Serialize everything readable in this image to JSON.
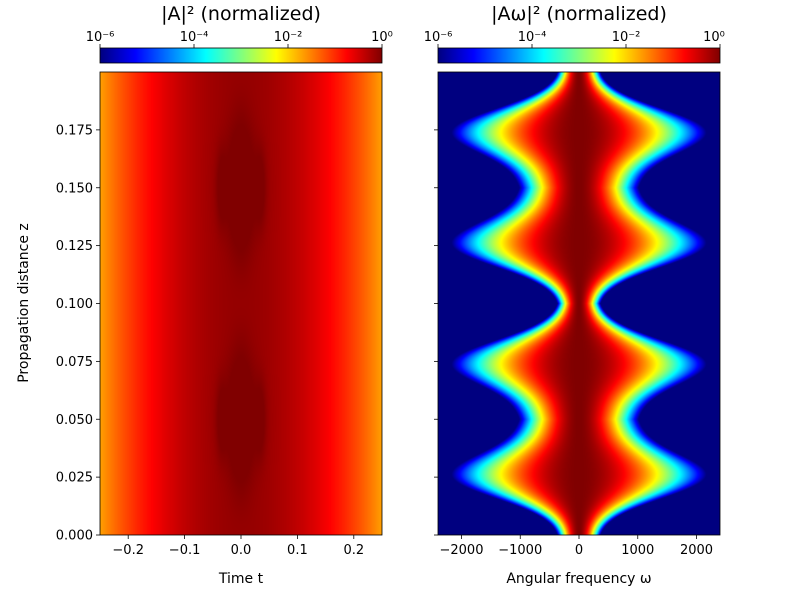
{
  "chart_data": [
    {
      "type": "heatmap",
      "panel": "left",
      "title": "|A|² (normalized)",
      "xlabel": "Time t",
      "ylabel": "Propagation distance z",
      "xlim": [
        -0.25,
        0.25
      ],
      "ylim": [
        0.0,
        0.2
      ],
      "x_ticks": [
        -0.2,
        -0.1,
        0.0,
        0.1,
        0.2
      ],
      "x_tick_labels": [
        "−0.2",
        "−0.1",
        "0.0",
        "0.1",
        "0.2"
      ],
      "y_ticks": [
        0.0,
        0.025,
        0.05,
        0.075,
        0.1,
        0.125,
        0.15,
        0.175
      ],
      "y_tick_labels": [
        "0.000",
        "0.025",
        "0.050",
        "0.075",
        "0.100",
        "0.125",
        "0.150",
        "0.175"
      ],
      "colorbar": {
        "scale": "log",
        "range": [
          1e-06,
          1
        ],
        "ticks": [
          1e-06,
          0.0001,
          0.01,
          1
        ],
        "tick_labels": [
          "10⁻⁶",
          "10⁻⁴",
          "10⁻²",
          "10⁰"
        ]
      },
      "pulse_width_rms": 0.093,
      "period_z": 0.1,
      "colormap": "jet"
    },
    {
      "type": "heatmap",
      "panel": "right",
      "title": "|Aω|² (normalized)",
      "xlabel": "Angular frequency ω",
      "ylabel": "",
      "xlim": [
        -2400,
        2400
      ],
      "ylim": [
        0.0,
        0.2
      ],
      "x_ticks": [
        -2000,
        -1000,
        0,
        1000,
        2000
      ],
      "x_tick_labels": [
        "−2000",
        "−1000",
        "0",
        "1000",
        "2000"
      ],
      "y_ticks": [
        0.0,
        0.025,
        0.05,
        0.075,
        0.1,
        0.125,
        0.15,
        0.175
      ],
      "colorbar": {
        "scale": "log",
        "range": [
          1e-06,
          1
        ],
        "ticks": [
          1e-06,
          0.0001,
          0.01,
          1
        ],
        "tick_labels": [
          "10⁻⁶",
          "10⁻⁴",
          "10⁻²",
          "10⁰"
        ]
      },
      "spectral_maxima_z": [
        0.025,
        0.075,
        0.125,
        0.175
      ],
      "spectral_maximum_width_omega": 700,
      "spectral_minimum_width_omega": 90,
      "period_z": 0.1,
      "colormap": "jet"
    }
  ],
  "colors": {
    "jet_low": "#00007f",
    "jet_high": "#7f0000"
  }
}
